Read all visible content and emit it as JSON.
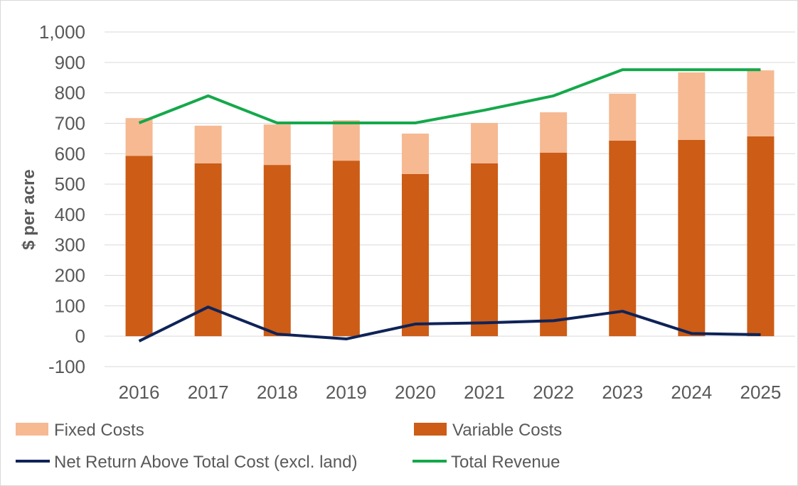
{
  "chart_data": {
    "type": "bar",
    "stacked": true,
    "title": "",
    "xlabel": "",
    "ylabel": "$ per acre",
    "ylim": [
      -100,
      1000
    ],
    "yticks": [
      -100,
      0,
      100,
      200,
      300,
      400,
      500,
      600,
      700,
      800,
      900,
      1000
    ],
    "ytick_labels": [
      "-100",
      "0",
      "100",
      "200",
      "300",
      "400",
      "500",
      "600",
      "700",
      "800",
      "900",
      "1,000"
    ],
    "grid": true,
    "legend_placement": "bottom",
    "categories": [
      "2016",
      "2017",
      "2018",
      "2019",
      "2020",
      "2021",
      "2022",
      "2023",
      "2024",
      "2025"
    ],
    "series": [
      {
        "name": "Variable Costs",
        "kind": "bar",
        "color": "#CC5C16",
        "values": [
          593,
          568,
          563,
          577,
          533,
          568,
          603,
          643,
          645,
          657
        ]
      },
      {
        "name": "Fixed Costs",
        "kind": "bar",
        "color": "#F6B992",
        "values": [
          124,
          124,
          133,
          133,
          133,
          133,
          133,
          154,
          222,
          217
        ]
      },
      {
        "name": "Net Return Above Total Cost (excl. land)",
        "kind": "line",
        "color": "#0E2357",
        "values": [
          -16,
          96,
          7,
          -9,
          40,
          44,
          51,
          82,
          9,
          5
        ]
      },
      {
        "name": "Total Revenue",
        "kind": "line",
        "color": "#15A84B",
        "values": [
          701,
          790,
          701,
          701,
          701,
          743,
          790,
          876,
          876,
          876
        ]
      }
    ]
  }
}
